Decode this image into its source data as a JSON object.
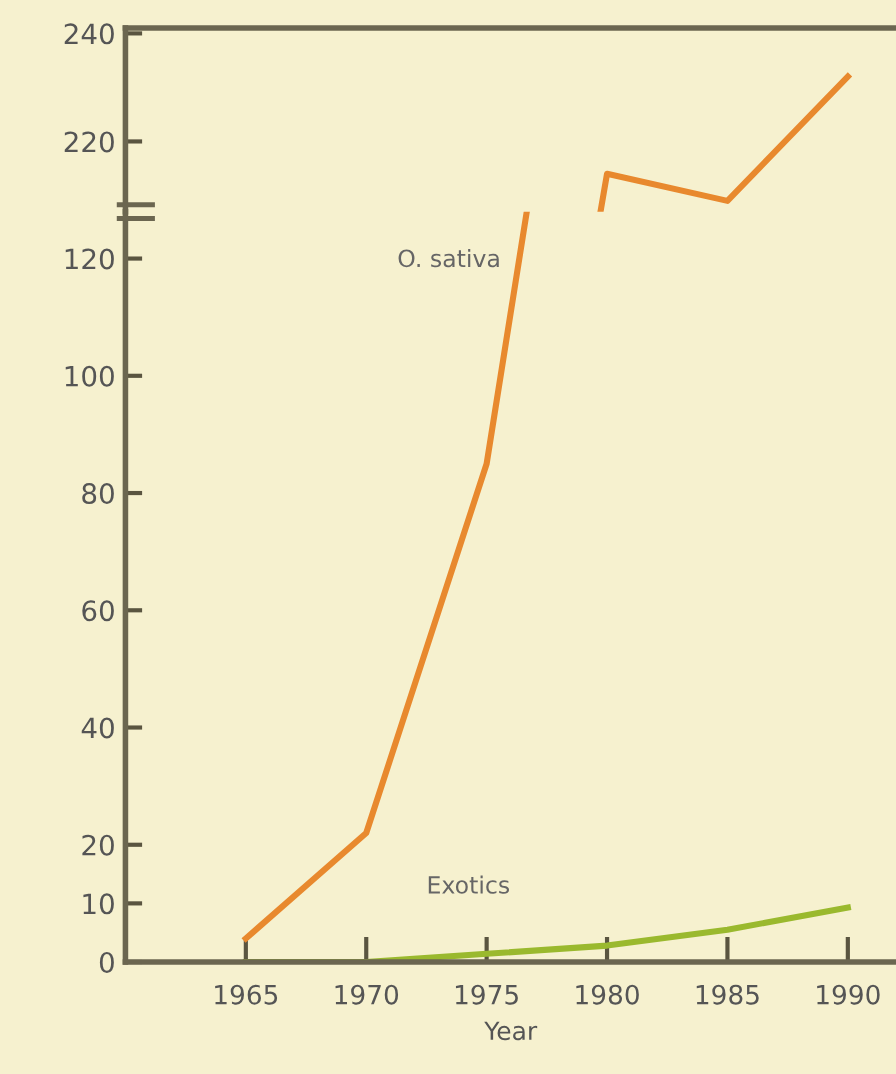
{
  "chart_data": [
    {
      "type": "line",
      "series": [
        {
          "color": "#e8892e",
          "x": [
            1980,
            1985,
            1990
          ],
          "values": [
            214,
            209,
            232
          ]
        }
      ],
      "xlim": [
        1960,
        1992
      ],
      "xticks": [
        1965,
        1970,
        1975,
        1980,
        1985,
        1990
      ],
      "ylim": [
        207,
        241
      ],
      "yticks": [
        220,
        240
      ],
      "tick_labels": "y",
      "grid": false,
      "legend": false,
      "marker": "none",
      "line_style": "solid"
    },
    {
      "type": "line",
      "xlabel": "Year",
      "x": [
        1965,
        1970,
        1975,
        1980,
        1985,
        1990
      ],
      "series": [
        {
          "color": "#e8892e",
          "x": [
            1965,
            1970,
            1975
          ],
          "values": [
            4,
            22,
            85
          ]
        },
        {
          "color": "#9ab92e",
          "values": [
            0,
            0,
            1.4,
            2.8,
            5.5,
            9.3
          ]
        }
      ],
      "annotations": [
        "O. sativa",
        "Exotics"
      ],
      "xlim": [
        1960,
        1992
      ],
      "xticks": [
        1965,
        1970,
        1975,
        1980,
        1985,
        1990
      ],
      "ylim": [
        0,
        128
      ],
      "yticks": [
        0,
        10,
        20,
        40,
        60,
        80,
        100,
        120
      ],
      "grid": false,
      "legend": false,
      "marker": "none",
      "line_style": "solid"
    }
  ]
}
